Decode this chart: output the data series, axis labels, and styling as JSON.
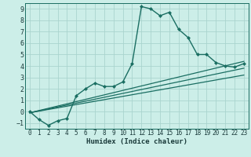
{
  "title": "",
  "xlabel": "Humidex (Indice chaleur)",
  "ylabel": "",
  "background_color": "#cceee8",
  "grid_color": "#aad4ce",
  "line_color": "#1a6e62",
  "xlim": [
    -0.5,
    23.5
  ],
  "ylim": [
    -1.5,
    9.5
  ],
  "xticks": [
    0,
    1,
    2,
    3,
    4,
    5,
    6,
    7,
    8,
    9,
    10,
    11,
    12,
    13,
    14,
    15,
    16,
    17,
    18,
    19,
    20,
    21,
    22,
    23
  ],
  "yticks": [
    -1,
    0,
    1,
    2,
    3,
    4,
    5,
    6,
    7,
    8,
    9
  ],
  "series": [
    {
      "x": [
        0,
        1,
        2,
        3,
        4,
        5,
        6,
        7,
        8,
        9,
        10,
        11,
        12,
        13,
        14,
        15,
        16,
        17,
        18,
        19,
        20,
        21,
        22,
        23
      ],
      "y": [
        0.0,
        -0.7,
        -1.2,
        -0.8,
        -0.6,
        1.4,
        2.0,
        2.5,
        2.2,
        2.2,
        2.6,
        4.2,
        9.2,
        9.0,
        8.4,
        8.7,
        7.2,
        6.5,
        5.0,
        5.0,
        4.3,
        4.0,
        3.9,
        4.2
      ],
      "marker": "D",
      "markersize": 2.0,
      "linewidth": 1.0,
      "zorder": 5
    },
    {
      "x": [
        0,
        23
      ],
      "y": [
        -0.1,
        4.4
      ],
      "marker": null,
      "markersize": 0,
      "linewidth": 0.9,
      "zorder": 3
    },
    {
      "x": [
        0,
        23
      ],
      "y": [
        -0.1,
        3.8
      ],
      "marker": null,
      "markersize": 0,
      "linewidth": 0.9,
      "zorder": 3
    },
    {
      "x": [
        0,
        23
      ],
      "y": [
        -0.1,
        3.2
      ],
      "marker": null,
      "markersize": 0,
      "linewidth": 0.9,
      "zorder": 3
    }
  ],
  "font_color": "#1a3a3a",
  "tick_fontsize": 5.5,
  "xlabel_fontsize": 6.5
}
